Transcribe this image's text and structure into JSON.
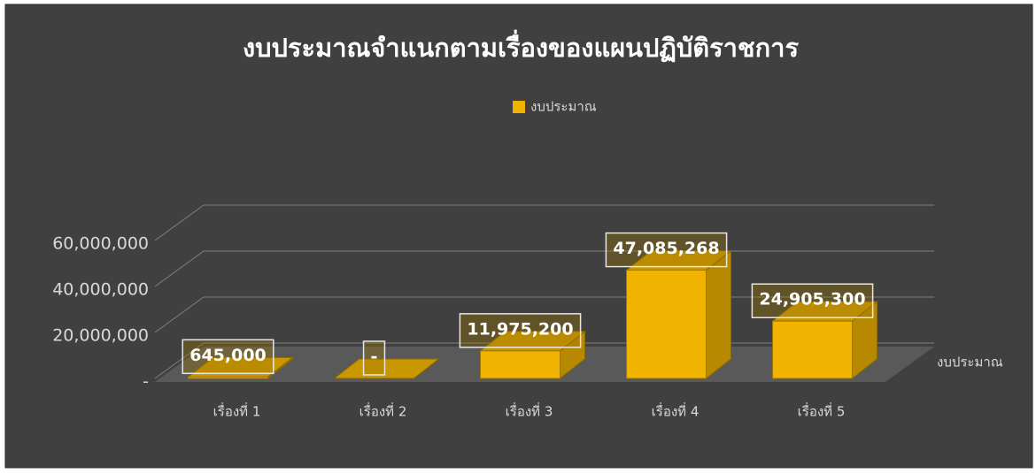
{
  "chart_data": {
    "type": "bar3d",
    "title": "งบประมาณจำแนกตามเรื่องของแผนปฏิบัติราชการ",
    "categories": [
      "เรื่องที่ 1",
      "เรื่องที่ 2",
      "เรื่องที่ 3",
      "เรื่องที่ 4",
      "เรื่องที่ 5"
    ],
    "series": [
      {
        "name": "งบประมาณ",
        "color": "#f0b400",
        "values": [
          645000,
          0,
          11975200,
          47085268,
          24905300
        ],
        "value_labels": [
          "645,000",
          "-",
          "11,975,200",
          "47,085,268",
          "24,905,300"
        ]
      }
    ],
    "ylim": [
      0,
      75000000
    ],
    "yticks": [
      {
        "value": 0,
        "label": "-"
      },
      {
        "value": 20000000,
        "label": "20,000,000"
      },
      {
        "value": 40000000,
        "label": "40,000,000"
      },
      {
        "value": 60000000,
        "label": "60,000,000"
      }
    ],
    "grid": true,
    "legend": "top"
  }
}
